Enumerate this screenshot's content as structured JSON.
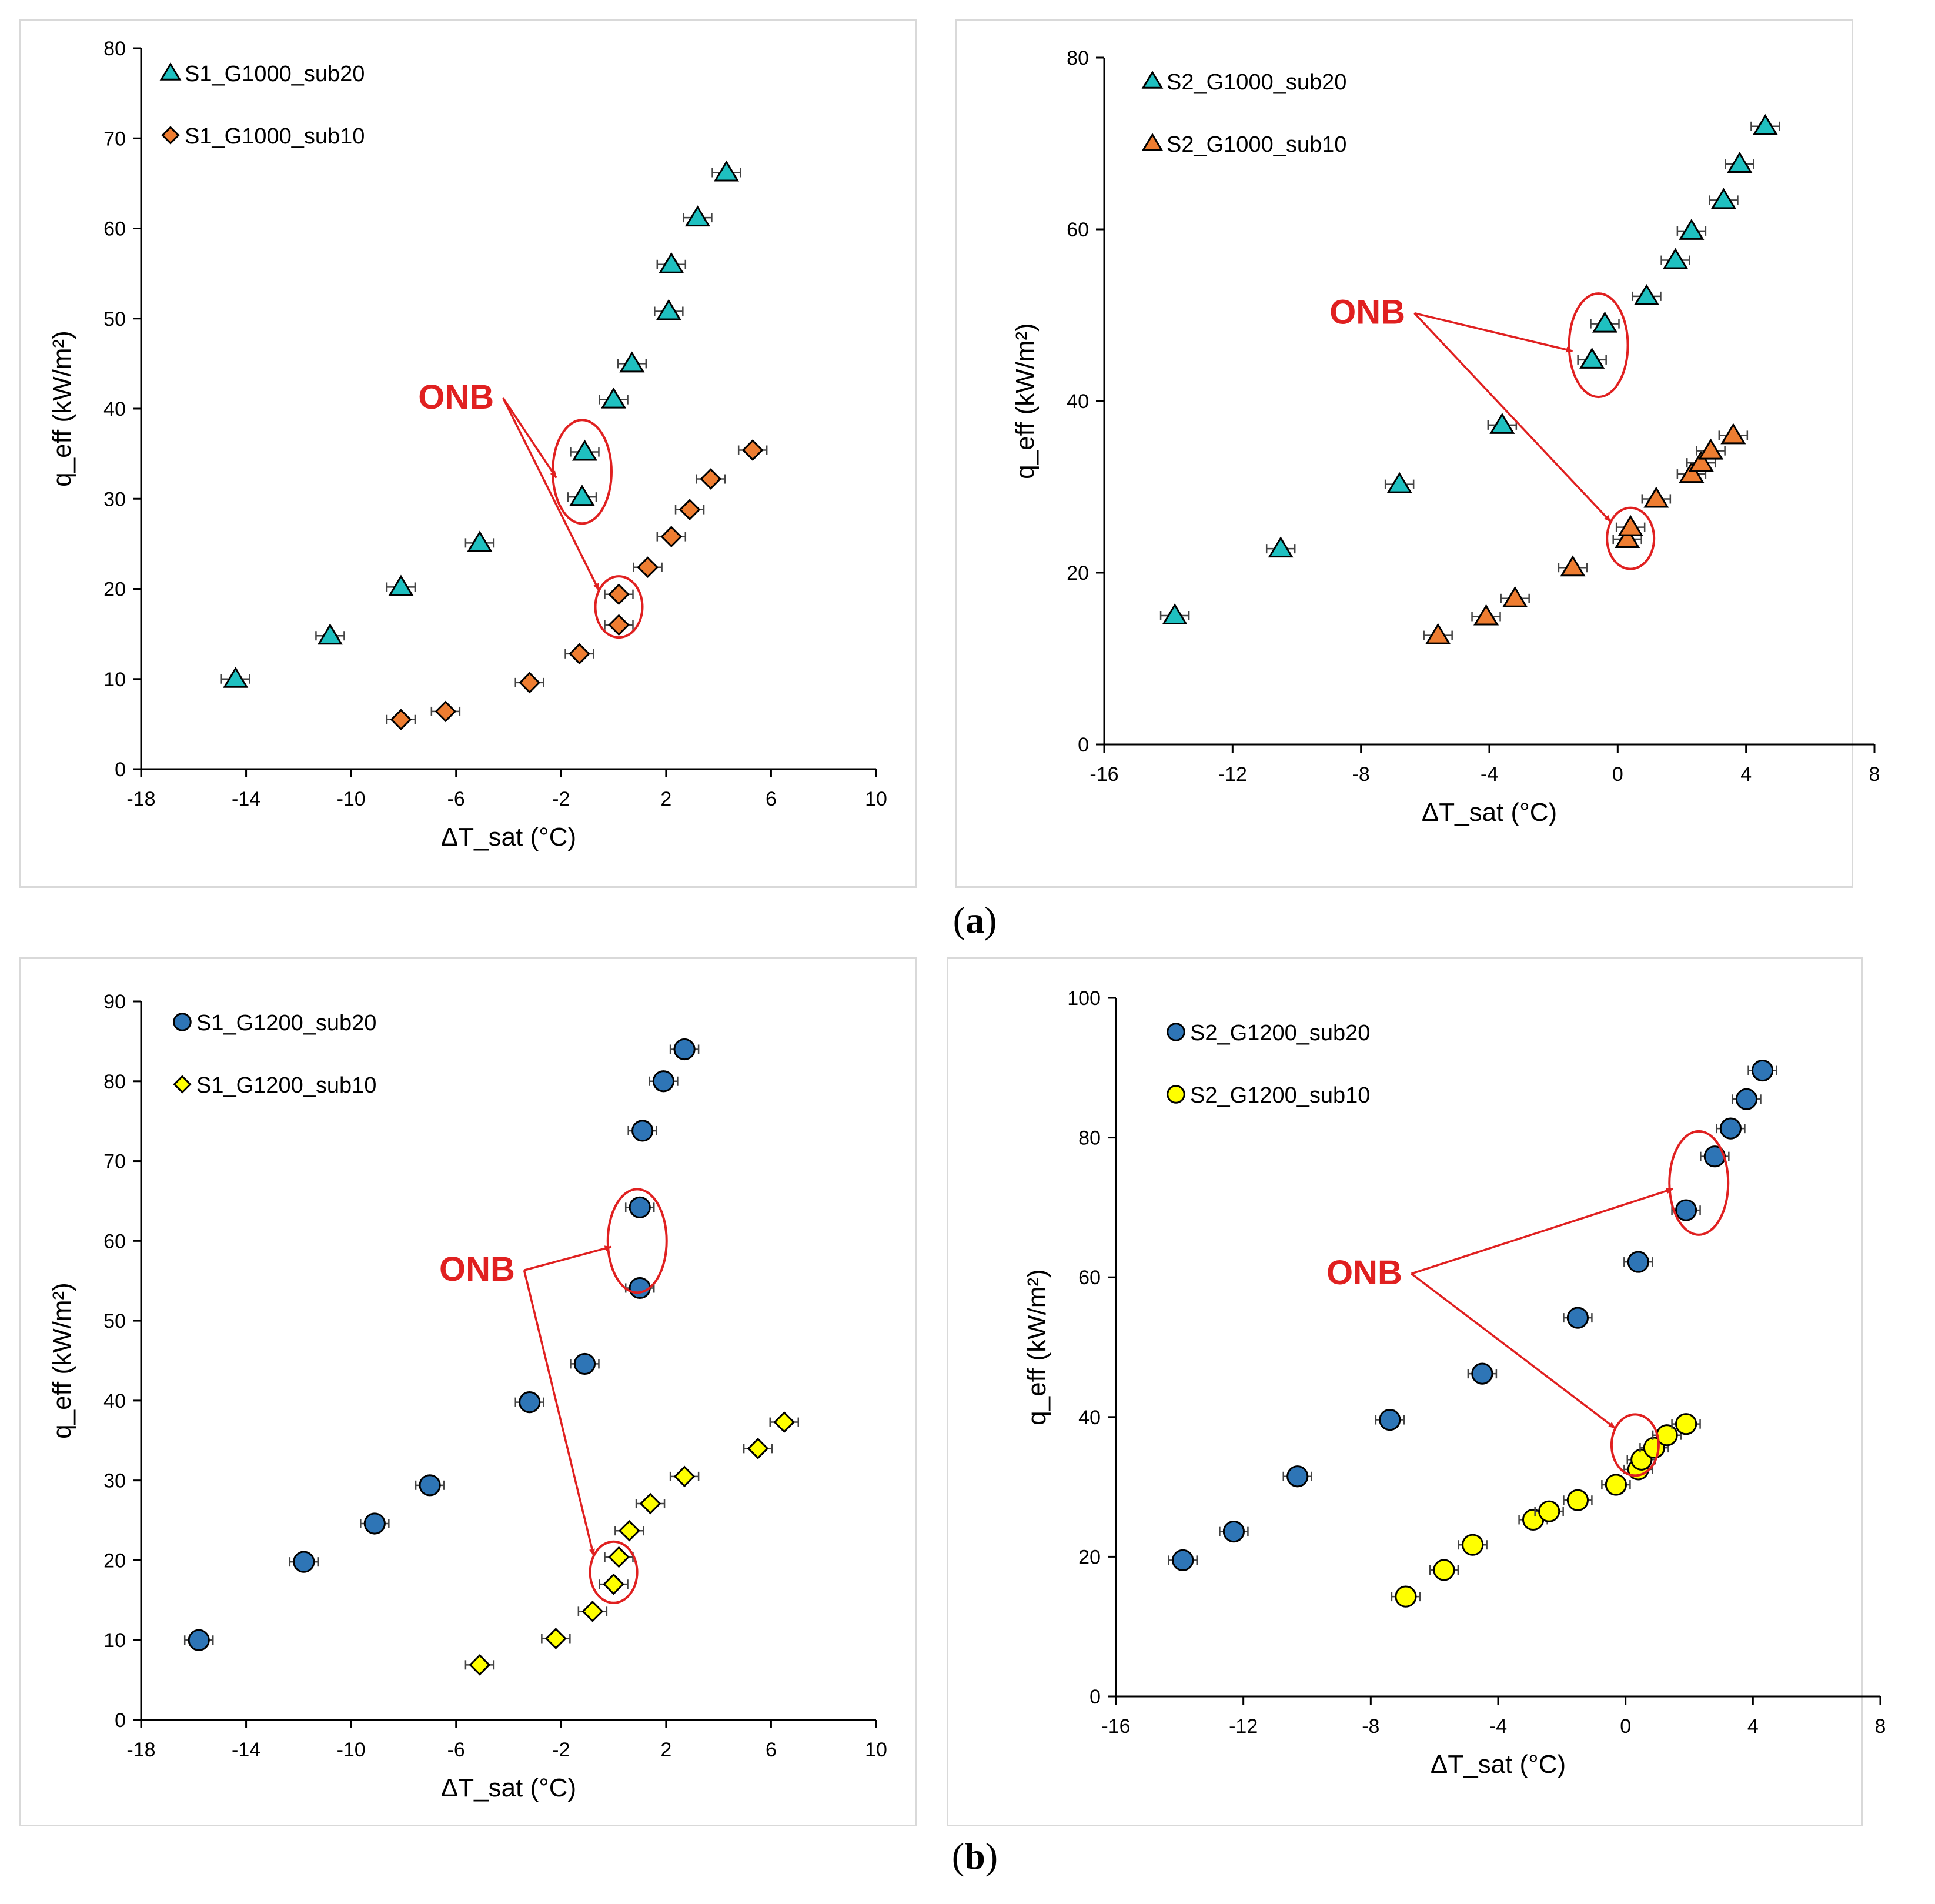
{
  "figure_labels": {
    "a": "a",
    "b": "b"
  },
  "colors": {
    "cyan": "#1fc0c0",
    "orange": "#ee7d31",
    "blue": "#2e75b6",
    "yellow": "#ffff00",
    "annotation": "#e02020",
    "axis": "#000000"
  },
  "chart_data": [
    {
      "type": "scatter",
      "id": "a-left",
      "title": "",
      "xlabel": "ΔT_sat (°C)",
      "ylabel": "q_eff (kW/m²)",
      "xlim": [
        -18,
        10
      ],
      "ylim": [
        0,
        80
      ],
      "xticks": [
        -18,
        -14,
        -10,
        -6,
        -2,
        2,
        6,
        10
      ],
      "yticks": [
        0,
        10,
        20,
        30,
        40,
        50,
        60,
        70,
        80
      ],
      "xtick_labels": [
        "-18",
        "-14",
        "-10",
        "-6",
        "-2",
        "2",
        "6",
        "10"
      ],
      "ytick_labels": [
        "0",
        "10",
        "20",
        "30",
        "40",
        "50",
        "60",
        "70",
        "80"
      ],
      "legend_position": "top-left",
      "annotation": {
        "text": "ONB",
        "circles": [
          [
            -1.2,
            33
          ],
          [
            0.2,
            18
          ]
        ],
        "text_at": [
          -6,
          40
        ]
      },
      "series": [
        {
          "name": "S1_G1000_sub20",
          "marker": "triangle",
          "color": "#1fc0c0",
          "points": [
            [
              -14.4,
              10.0
            ],
            [
              -10.8,
              14.8
            ],
            [
              -8.1,
              20.2
            ],
            [
              -5.1,
              25.1
            ],
            [
              -1.2,
              30.2
            ],
            [
              -1.1,
              35.2
            ],
            [
              0.0,
              41.0
            ],
            [
              0.7,
              45.0
            ],
            [
              2.1,
              50.8
            ],
            [
              2.2,
              56.0
            ],
            [
              3.2,
              61.2
            ],
            [
              4.3,
              66.2
            ]
          ]
        },
        {
          "name": "S1_G1000_sub10",
          "marker": "diamond",
          "color": "#ee7d31",
          "points": [
            [
              -8.1,
              5.5
            ],
            [
              -6.4,
              6.4
            ],
            [
              -3.2,
              9.6
            ],
            [
              -1.3,
              12.8
            ],
            [
              0.2,
              16.0
            ],
            [
              0.2,
              19.4
            ],
            [
              1.3,
              22.4
            ],
            [
              2.2,
              25.8
            ],
            [
              2.9,
              28.8
            ],
            [
              3.7,
              32.2
            ],
            [
              5.3,
              35.4
            ]
          ]
        }
      ]
    },
    {
      "type": "scatter",
      "id": "a-right",
      "title": "",
      "xlabel": "ΔT_sat (°C)",
      "ylabel": "q_eff (kW/m²)",
      "xlim": [
        -16,
        8
      ],
      "ylim": [
        0,
        80
      ],
      "xticks": [
        -16,
        -12,
        -8,
        -4,
        0,
        4,
        8
      ],
      "yticks": [
        0,
        20,
        40,
        60,
        80
      ],
      "xtick_labels": [
        "-16",
        "-12",
        "-8",
        "-4",
        "0",
        "4",
        "8"
      ],
      "ytick_labels": [
        "0",
        "20",
        "40",
        "60",
        "80"
      ],
      "legend_position": "top-left",
      "annotation": {
        "text": "ONB",
        "circles": [
          [
            -0.6,
            46.5
          ],
          [
            0.4,
            24
          ]
        ],
        "text_at": [
          -7.8,
          49
        ]
      },
      "series": [
        {
          "name": "S2_G1000_sub20",
          "marker": "triangle",
          "color": "#1fc0c0",
          "points": [
            [
              -13.8,
              15.0
            ],
            [
              -10.5,
              22.8
            ],
            [
              -6.8,
              30.3
            ],
            [
              -3.6,
              37.2
            ],
            [
              -0.8,
              44.8
            ],
            [
              -0.4,
              49.0
            ],
            [
              0.9,
              52.2
            ],
            [
              1.8,
              56.4
            ],
            [
              2.3,
              59.8
            ],
            [
              3.3,
              63.4
            ],
            [
              3.8,
              67.6
            ],
            [
              4.6,
              72.0
            ]
          ]
        },
        {
          "name": "S2_G1000_sub10",
          "marker": "triangle",
          "color": "#ee7d31",
          "points": [
            [
              -5.6,
              12.7
            ],
            [
              -4.1,
              14.9
            ],
            [
              -3.2,
              17.0
            ],
            [
              -1.4,
              20.6
            ],
            [
              0.3,
              23.9
            ],
            [
              0.4,
              25.3
            ],
            [
              1.2,
              28.6
            ],
            [
              2.3,
              31.5
            ],
            [
              2.6,
              32.8
            ],
            [
              2.9,
              34.2
            ],
            [
              3.6,
              36.0
            ]
          ]
        }
      ]
    },
    {
      "type": "scatter",
      "id": "b-left",
      "title": "",
      "xlabel": "ΔT_sat (°C)",
      "ylabel": "q_eff (kW/m²)",
      "xlim": [
        -18,
        10
      ],
      "ylim": [
        0,
        90
      ],
      "xticks": [
        -18,
        -14,
        -10,
        -6,
        -2,
        2,
        6,
        10
      ],
      "yticks": [
        0,
        10,
        20,
        30,
        40,
        50,
        60,
        70,
        80,
        90
      ],
      "xtick_labels": [
        "-18",
        "-14",
        "-10",
        "-6",
        "-2",
        "2",
        "6",
        "10"
      ],
      "ytick_labels": [
        "0",
        "10",
        "20",
        "30",
        "40",
        "50",
        "60",
        "70",
        "80",
        "90"
      ],
      "legend_position": "top-left",
      "annotation": {
        "text": "ONB",
        "circles": [
          [
            0.9,
            60
          ],
          [
            0.0,
            18.5
          ]
        ],
        "text_at": [
          -5.2,
          55
        ]
      },
      "series": [
        {
          "name": "S1_G1200_sub20",
          "marker": "circle",
          "color": "#2e75b6",
          "points": [
            [
              -15.8,
              10.0
            ],
            [
              -11.8,
              19.8
            ],
            [
              -9.1,
              24.6
            ],
            [
              -7.0,
              29.4
            ],
            [
              -3.2,
              39.8
            ],
            [
              -1.1,
              44.6
            ],
            [
              1.0,
              54.1
            ],
            [
              1.0,
              64.2
            ],
            [
              1.1,
              73.8
            ],
            [
              1.9,
              80.0
            ],
            [
              2.7,
              84.0
            ]
          ]
        },
        {
          "name": "S1_G1200_sub10",
          "marker": "diamond",
          "color": "#ffff00",
          "points": [
            [
              -5.1,
              6.9
            ],
            [
              -2.2,
              10.2
            ],
            [
              -0.8,
              13.6
            ],
            [
              0.0,
              17.0
            ],
            [
              0.2,
              20.4
            ],
            [
              0.6,
              23.7
            ],
            [
              1.4,
              27.1
            ],
            [
              2.7,
              30.5
            ],
            [
              5.5,
              34.0
            ],
            [
              6.5,
              37.3
            ]
          ]
        }
      ]
    },
    {
      "type": "scatter",
      "id": "b-right",
      "title": "",
      "xlabel": "ΔT_sat (°C)",
      "ylabel": "q_eff (kW/m²)",
      "xlim": [
        -16,
        8
      ],
      "ylim": [
        0,
        100
      ],
      "xticks": [
        -16,
        -12,
        -8,
        -4,
        0,
        4,
        8
      ],
      "yticks": [
        0,
        20,
        40,
        60,
        80,
        100
      ],
      "xtick_labels": [
        "-16",
        "-12",
        "-8",
        "-4",
        "0",
        "4",
        "8"
      ],
      "ytick_labels": [
        "0",
        "20",
        "40",
        "60",
        "80",
        "100"
      ],
      "legend_position": "top-left",
      "annotation": {
        "text": "ONB",
        "circles": [
          [
            2.3,
            73.5
          ],
          [
            0.3,
            36
          ]
        ],
        "text_at": [
          -8.2,
          59
        ]
      },
      "series": [
        {
          "name": "S2_G1200_sub20",
          "marker": "circle",
          "color": "#2e75b6",
          "points": [
            [
              -13.9,
              19.5
            ],
            [
              -12.3,
              23.6
            ],
            [
              -10.3,
              31.5
            ],
            [
              -7.4,
              39.6
            ],
            [
              -4.5,
              46.2
            ],
            [
              -1.5,
              54.2
            ],
            [
              0.4,
              62.2
            ],
            [
              1.9,
              69.6
            ],
            [
              2.8,
              77.3
            ],
            [
              3.3,
              81.3
            ],
            [
              3.8,
              85.5
            ],
            [
              4.3,
              89.6
            ]
          ]
        },
        {
          "name": "S2_G1200_sub10",
          "marker": "circle",
          "color": "#ffff00",
          "points": [
            [
              -6.9,
              14.3
            ],
            [
              -5.7,
              18.1
            ],
            [
              -4.8,
              21.7
            ],
            [
              -2.9,
              25.3
            ],
            [
              -2.4,
              26.5
            ],
            [
              -1.5,
              28.1
            ],
            [
              -0.3,
              30.3
            ],
            [
              0.4,
              32.5
            ],
            [
              0.5,
              33.9
            ],
            [
              0.9,
              35.6
            ],
            [
              1.3,
              37.4
            ],
            [
              1.9,
              39.0
            ]
          ]
        }
      ]
    }
  ]
}
